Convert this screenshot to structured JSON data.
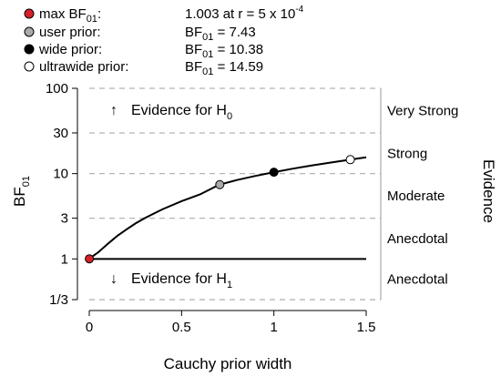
{
  "legend": [
    {
      "label_main": "max BF",
      "label_sub": "01",
      "label_suffix": ":",
      "value_main": "1.003 at r =  5 x 10",
      "value_sup": "-4",
      "fill": "#d9202a"
    },
    {
      "label_main": "user prior:",
      "value_main": "BF",
      "value_sub": "01",
      "value_suffix": " = 7.43",
      "fill": "#aaaaaa"
    },
    {
      "label_main": "wide prior:",
      "value_main": "BF",
      "value_sub": "01",
      "value_suffix": " = 10.38",
      "fill": "#000000"
    },
    {
      "label_main": "ultrawide prior:",
      "value_main": "BF",
      "value_sub": "01",
      "value_suffix": " = 14.59",
      "fill": "#ffffff"
    }
  ],
  "annotations": {
    "h0_arrow": "↑",
    "h0_text": "Evidence for H",
    "h0_sub": "0",
    "h1_arrow": "↓",
    "h1_text": "Evidence for H",
    "h1_sub": "1"
  },
  "chart_data": {
    "type": "line",
    "xlabel": "Cauchy prior width",
    "ylabel_main": "BF",
    "ylabel_sub": "01",
    "right_axis_label": "Evidence",
    "xlim": [
      0,
      1.5
    ],
    "ylim": [
      0.3,
      100
    ],
    "y_scale": "log",
    "x_ticks": [
      0,
      0.5,
      1,
      1.5
    ],
    "x_tick_labels": [
      "0",
      "0.5",
      "1",
      "1.5"
    ],
    "y_ticks": [
      0.333,
      1,
      3,
      10,
      30,
      100
    ],
    "y_tick_labels": [
      "1/3",
      "1",
      "3",
      "10",
      "30",
      "100"
    ],
    "gridlines": [
      0.333,
      3,
      10,
      30,
      100
    ],
    "evidence_categories": [
      {
        "label": "Very Strong",
        "y": 54.8
      },
      {
        "label": "Strong",
        "y": 17.3
      },
      {
        "label": "Moderate",
        "y": 5.48
      },
      {
        "label": "Anecdotal",
        "y": 1.73
      },
      {
        "label": "Anecdotal",
        "y": 0.577
      }
    ],
    "series": [
      {
        "x": [
          0.0005,
          0.01,
          0.02,
          0.05,
          0.1,
          0.15,
          0.2,
          0.25,
          0.3,
          0.35,
          0.4,
          0.5,
          0.6,
          0.7,
          0.707,
          0.8,
          0.9,
          1.0,
          1.1,
          1.2,
          1.3,
          1.414,
          1.5
        ],
        "y": [
          1.003,
          1.03,
          1.08,
          1.2,
          1.5,
          1.85,
          2.2,
          2.6,
          3.0,
          3.4,
          3.85,
          4.75,
          5.7,
          7.35,
          7.43,
          8.4,
          9.4,
          10.38,
          11.4,
          12.4,
          13.4,
          14.59,
          15.5
        ]
      }
    ],
    "reference_line": {
      "y": 1,
      "x": [
        0,
        1.5
      ]
    },
    "points": [
      {
        "name": "max",
        "x": 0.0005,
        "y": 1.003,
        "fill": "#d9202a"
      },
      {
        "name": "user",
        "x": 0.707,
        "y": 7.43,
        "fill": "#aaaaaa"
      },
      {
        "name": "wide",
        "x": 1.0,
        "y": 10.38,
        "fill": "#000000"
      },
      {
        "name": "ultrawide",
        "x": 1.414,
        "y": 14.59,
        "fill": "#ffffff"
      }
    ]
  }
}
